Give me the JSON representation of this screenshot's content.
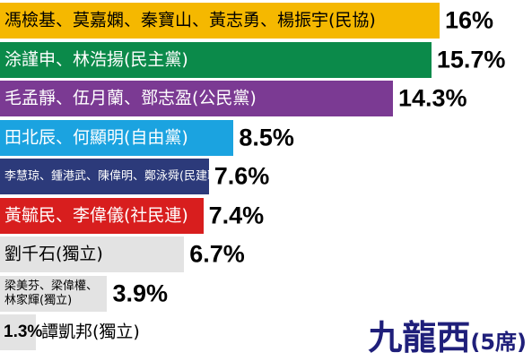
{
  "chart_data": {
    "type": "bar",
    "orientation": "horizontal",
    "district": "九龍西",
    "seats": "(5席)",
    "categories": [
      "馮檢基、莫嘉嫻、秦寶山、黃志勇、楊振宇(民協)",
      "涂謹申、林浩揚(民主黨)",
      "毛孟靜、伍月蘭、鄧志盈(公民黨)",
      "田北辰、何顯明(自由黨)",
      "李慧琼、鍾港武、陳偉明、鄭泳舜(民建聯)",
      "黃毓民、李偉儀(社民連)",
      "劉千石(獨立)",
      "梁美芬、梁偉權、\n林家輝(獨立)",
      "譚凱邦(獨立)"
    ],
    "values": [
      16,
      15.7,
      14.3,
      8.5,
      7.6,
      7.4,
      6.7,
      3.9,
      1.3
    ],
    "value_labels": [
      "16%",
      "15.7%",
      "14.3%",
      "8.5%",
      "7.6%",
      "7.4%",
      "6.7%",
      "3.9%",
      "1.3%"
    ],
    "colors": [
      "#f5b800",
      "#0b8a4a",
      "#7b3a93",
      "#1ba3e0",
      "#2c3a7a",
      "#d81e1e",
      "#e3e3e3",
      "#e3e3e3",
      "#e3e3e3"
    ],
    "label_colors": [
      "#000000",
      "#ffffff",
      "#ffffff",
      "#ffffff",
      "#ffffff",
      "#ffffff",
      "#000000",
      "#000000",
      "#000000"
    ],
    "xlim": [
      0,
      16
    ]
  }
}
